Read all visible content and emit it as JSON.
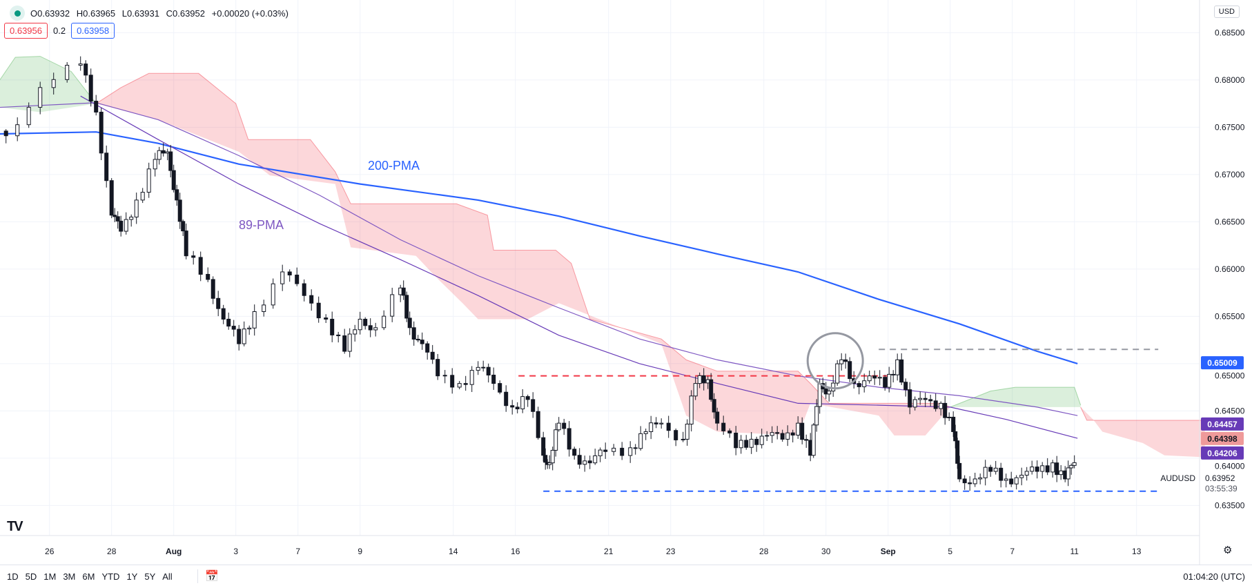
{
  "header": {
    "ohlc": [
      "O0.63932",
      "H0.63965",
      "L0.63931",
      "C0.63952",
      "+0.00020 (+0.03%)"
    ],
    "sell_price": "0.63956",
    "spread": "0.2",
    "buy_price": "0.63958",
    "currency": "USD"
  },
  "bottom_bar": {
    "ranges": [
      "1D",
      "5D",
      "1M",
      "3M",
      "6M",
      "YTD",
      "1Y",
      "5Y",
      "All"
    ],
    "clock": "01:04:20 (UTC)"
  },
  "colors": {
    "up": "#ffffff",
    "down": "#131722",
    "ma200": "#2962ff",
    "ma89": "#7e57c2",
    "cloud_red": "#f23645",
    "cloud_green": "#4caf50",
    "red_line": "#f23645",
    "blue_line": "#2962ff",
    "gray_line": "#9598a1"
  },
  "chart_data": {
    "type": "candlestick",
    "symbol": "AUDUSD",
    "last_price": "0.63952",
    "countdown": "03:55:39",
    "ylim": [
      0.6315,
      0.688
    ],
    "xlim_days": [
      -1.6,
      37.2
    ],
    "yticks": [
      "0.68500",
      "0.68000",
      "0.67500",
      "0.67000",
      "0.66500",
      "0.66000",
      "0.65500",
      "0.65000",
      "0.64500",
      "0.64000",
      "0.63500"
    ],
    "ytick_values": [
      0.685,
      0.68,
      0.675,
      0.67,
      0.665,
      0.66,
      0.655,
      0.65,
      0.645,
      0.64,
      0.635
    ],
    "xticks": [
      {
        "label": "26",
        "day": 0
      },
      {
        "label": "28",
        "day": 2
      },
      {
        "label": "Aug",
        "day": 4,
        "bold": true
      },
      {
        "label": "3",
        "day": 6
      },
      {
        "label": "7",
        "day": 8
      },
      {
        "label": "9",
        "day": 10
      },
      {
        "label": "14",
        "day": 13
      },
      {
        "label": "16",
        "day": 15
      },
      {
        "label": "21",
        "day": 18
      },
      {
        "label": "23",
        "day": 20
      },
      {
        "label": "28",
        "day": 23
      },
      {
        "label": "30",
        "day": 25
      },
      {
        "label": "Sep",
        "day": 27,
        "bold": true
      },
      {
        "label": "5",
        "day": 29
      },
      {
        "label": "7",
        "day": 31
      },
      {
        "label": "11",
        "day": 33
      },
      {
        "label": "13",
        "day": 35
      }
    ],
    "closes": [
      [
        -1.4,
        0.6741
      ],
      [
        -0.3,
        0.6792
      ],
      [
        1.0,
        0.6817
      ],
      [
        1.5,
        0.6766
      ],
      [
        2.0,
        0.6657
      ],
      [
        2.3,
        0.664
      ],
      [
        2.8,
        0.6673
      ],
      [
        3.4,
        0.6716
      ],
      [
        3.8,
        0.6724
      ],
      [
        4.1,
        0.6673
      ],
      [
        4.4,
        0.6614
      ],
      [
        5.1,
        0.6589
      ],
      [
        5.6,
        0.6547
      ],
      [
        6.1,
        0.6521
      ],
      [
        6.6,
        0.6555
      ],
      [
        7.5,
        0.6597
      ],
      [
        8.2,
        0.6572
      ],
      [
        8.9,
        0.6547
      ],
      [
        9.5,
        0.6513
      ],
      [
        10.0,
        0.6547
      ],
      [
        10.5,
        0.6538
      ],
      [
        11.3,
        0.658
      ],
      [
        11.6,
        0.6538
      ],
      [
        12.0,
        0.6521
      ],
      [
        12.5,
        0.6487
      ],
      [
        13.2,
        0.6479
      ],
      [
        13.8,
        0.6496
      ],
      [
        14.3,
        0.6479
      ],
      [
        14.9,
        0.6454
      ],
      [
        15.4,
        0.6462
      ],
      [
        15.9,
        0.6403
      ],
      [
        16.1,
        0.6395
      ],
      [
        16.4,
        0.6437
      ],
      [
        16.9,
        0.6403
      ],
      [
        17.4,
        0.6395
      ],
      [
        17.9,
        0.6407
      ],
      [
        18.7,
        0.6411
      ],
      [
        19.2,
        0.6428
      ],
      [
        19.7,
        0.6437
      ],
      [
        20.4,
        0.642
      ],
      [
        20.8,
        0.6479
      ],
      [
        21.2,
        0.6483
      ],
      [
        21.5,
        0.6437
      ],
      [
        22.1,
        0.6411
      ],
      [
        22.6,
        0.642
      ],
      [
        23.1,
        0.6424
      ],
      [
        23.6,
        0.642
      ],
      [
        24.1,
        0.6437
      ],
      [
        24.5,
        0.6403
      ],
      [
        24.8,
        0.6479
      ],
      [
        25.1,
        0.6471
      ],
      [
        25.5,
        0.6504
      ],
      [
        25.9,
        0.6479
      ],
      [
        26.4,
        0.6487
      ],
      [
        26.9,
        0.6475
      ],
      [
        27.3,
        0.6504
      ],
      [
        27.7,
        0.6454
      ],
      [
        28.2,
        0.6462
      ],
      [
        28.7,
        0.6458
      ],
      [
        29.1,
        0.6428
      ],
      [
        29.3,
        0.6378
      ],
      [
        29.8,
        0.6378
      ],
      [
        30.3,
        0.6386
      ],
      [
        30.8,
        0.6378
      ],
      [
        31.3,
        0.6382
      ],
      [
        31.8,
        0.6386
      ],
      [
        32.3,
        0.6395
      ],
      [
        32.7,
        0.6378
      ],
      [
        33.0,
        0.63952
      ]
    ],
    "ma200": {
      "label": "200-PMA",
      "value": "0.65009",
      "points": [
        [
          -1.6,
          0.6743
        ],
        [
          1.5,
          0.6745
        ],
        [
          3.5,
          0.6733
        ],
        [
          6.1,
          0.6711
        ],
        [
          10.0,
          0.669
        ],
        [
          13.8,
          0.6673
        ],
        [
          16.4,
          0.6656
        ],
        [
          19.0,
          0.6635
        ],
        [
          21.5,
          0.6616
        ],
        [
          24.1,
          0.6597
        ],
        [
          26.7,
          0.6568
        ],
        [
          29.3,
          0.6542
        ],
        [
          31.8,
          0.6513
        ],
        [
          33.1,
          0.65
        ]
      ]
    },
    "ma89": {
      "label": "89-PMA",
      "value": "0.64457",
      "points": [
        [
          -1.6,
          0.6771
        ],
        [
          1.5,
          0.6776
        ],
        [
          3.5,
          0.6758
        ],
        [
          6.1,
          0.672
        ],
        [
          8.7,
          0.6678
        ],
        [
          11.3,
          0.6631
        ],
        [
          13.8,
          0.6593
        ],
        [
          16.4,
          0.6559
        ],
        [
          19.0,
          0.6526
        ],
        [
          21.5,
          0.6504
        ],
        [
          24.1,
          0.6487
        ],
        [
          26.7,
          0.6475
        ],
        [
          29.3,
          0.6466
        ],
        [
          31.8,
          0.6454
        ],
        [
          33.1,
          0.6445
        ]
      ]
    },
    "ma_second": {
      "value": "0.64206",
      "points": [
        [
          1.0,
          0.6783
        ],
        [
          3.5,
          0.6737
        ],
        [
          6.1,
          0.669
        ],
        [
          8.7,
          0.6648
        ],
        [
          11.3,
          0.661
        ],
        [
          13.8,
          0.6572
        ],
        [
          16.4,
          0.653
        ],
        [
          19.0,
          0.65
        ],
        [
          21.5,
          0.6479
        ],
        [
          24.1,
          0.6458
        ],
        [
          26.7,
          0.6456
        ],
        [
          29.0,
          0.6454
        ],
        [
          30.8,
          0.6441
        ],
        [
          33.1,
          0.6421
        ]
      ]
    },
    "cloud_value": "0.64398",
    "clouds": [
      {
        "color": "green",
        "top": [
          [
            -1.6,
            0.68
          ],
          [
            -1.1,
            0.6824
          ],
          [
            -0.3,
            0.6825
          ],
          [
            0.7,
            0.6809
          ],
          [
            1.5,
            0.6775
          ]
        ],
        "bottom": [
          [
            -1.6,
            0.6771
          ],
          [
            -0.3,
            0.6766
          ],
          [
            1.5,
            0.6775
          ]
        ]
      },
      {
        "color": "red",
        "top": [
          [
            1.5,
            0.6775
          ],
          [
            2.3,
            0.6792
          ],
          [
            3.2,
            0.6807
          ],
          [
            4.8,
            0.6807
          ],
          [
            6.0,
            0.6775
          ],
          [
            6.4,
            0.6737
          ],
          [
            8.4,
            0.6737
          ],
          [
            9.2,
            0.6703
          ],
          [
            9.7,
            0.6669
          ],
          [
            13.1,
            0.6669
          ],
          [
            14.1,
            0.6657
          ],
          [
            14.3,
            0.662
          ],
          [
            16.3,
            0.662
          ],
          [
            16.8,
            0.6606
          ],
          [
            17.4,
            0.6547
          ],
          [
            19.7,
            0.6526
          ],
          [
            20.5,
            0.6504
          ],
          [
            21.5,
            0.6492
          ],
          [
            24.1,
            0.6492
          ],
          [
            24.5,
            0.6479
          ],
          [
            25.1,
            0.6458
          ],
          [
            28.7,
            0.6458
          ],
          [
            29.0,
            0.6454
          ]
        ],
        "bottom": [
          [
            1.5,
            0.6775
          ],
          [
            3.5,
            0.6758
          ],
          [
            6.1,
            0.6724
          ],
          [
            7.1,
            0.6699
          ],
          [
            9.2,
            0.669
          ],
          [
            9.7,
            0.6623
          ],
          [
            11.8,
            0.6614
          ],
          [
            12.4,
            0.6593
          ],
          [
            13.3,
            0.6564
          ],
          [
            13.8,
            0.6547
          ],
          [
            15.4,
            0.6547
          ],
          [
            16.4,
            0.6564
          ],
          [
            19.7,
            0.6521
          ],
          [
            20.5,
            0.6445
          ],
          [
            21.5,
            0.6428
          ],
          [
            24.1,
            0.6424
          ],
          [
            24.5,
            0.6458
          ],
          [
            26.7,
            0.6445
          ],
          [
            27.2,
            0.6424
          ],
          [
            28.2,
            0.6424
          ],
          [
            29.0,
            0.6454
          ]
        ]
      },
      {
        "color": "green",
        "top": [
          [
            29.0,
            0.6454
          ],
          [
            30.3,
            0.6471
          ],
          [
            31.1,
            0.6475
          ],
          [
            33.0,
            0.6475
          ],
          [
            33.2,
            0.6456
          ]
        ],
        "bottom": [
          [
            29.0,
            0.6454
          ],
          [
            33.2,
            0.6454
          ]
        ]
      },
      {
        "color": "red",
        "top": [
          [
            33.2,
            0.6454
          ],
          [
            33.4,
            0.644
          ],
          [
            37.2,
            0.644
          ]
        ],
        "bottom": [
          [
            33.2,
            0.6454
          ],
          [
            33.6,
            0.6441
          ],
          [
            33.9,
            0.6428
          ],
          [
            35.2,
            0.6416
          ],
          [
            35.9,
            0.6403
          ],
          [
            37.2,
            0.6401
          ]
        ]
      }
    ],
    "hlines": [
      {
        "name": "resistance-red",
        "price": 0.6487,
        "from": 15.1,
        "to": 27.1,
        "color": "red_line"
      },
      {
        "name": "resistance-gray",
        "price": 0.6515,
        "from": 26.7,
        "to": 35.7,
        "color": "gray_line"
      },
      {
        "name": "support-blue",
        "price": 0.6365,
        "from": 15.9,
        "to": 35.7,
        "color": "blue_line"
      }
    ],
    "highlight_circle": {
      "day": 25.3,
      "price": 0.6503
    }
  }
}
